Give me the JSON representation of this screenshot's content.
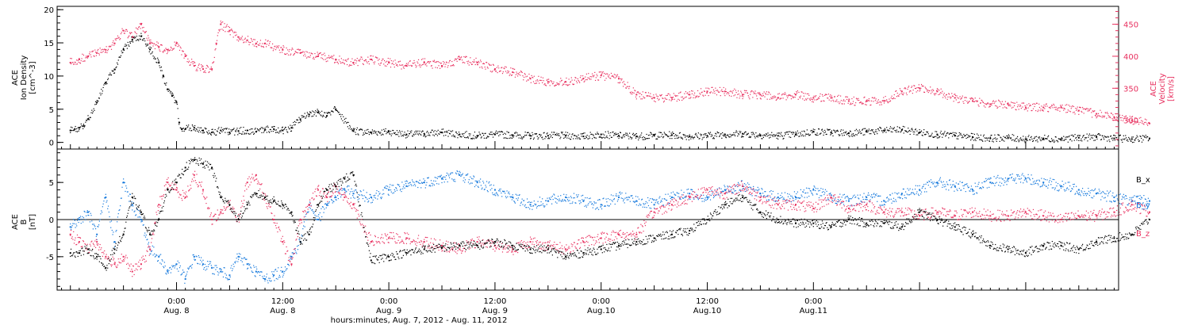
{
  "colors": {
    "black": "#000000",
    "pink": "#e8305f",
    "blue": "#1478dc"
  },
  "chart_data": [
    {
      "type": "scatter",
      "panel": "top",
      "y_left": {
        "label_lines": [
          "ACE",
          "Ion Density",
          "[cm^-3]"
        ],
        "ylim": [
          -1,
          20.5
        ],
        "ticks": [
          0,
          5,
          10,
          15,
          20
        ]
      },
      "y_right": {
        "label_lines": [
          "ACE",
          "Velocity",
          "[km/s]"
        ],
        "ylim": [
          255,
          478
        ],
        "ticks": [
          300,
          350,
          400,
          450
        ]
      },
      "series": [
        {
          "axis": "left",
          "color": "#000000",
          "x_hours": [
            -12.0,
            -11.5,
            -11.0,
            -10.5,
            -10.0,
            -9.0,
            -8.0,
            -7.0,
            -6.0,
            -5.0,
            -4.0,
            -3.0,
            -2.0,
            -1.5,
            -1.0,
            -0.5,
            0.0,
            0.3,
            0.6,
            1.0,
            2.0,
            3.0,
            4.0,
            5.0,
            6.0,
            7.0,
            8.0,
            9.0,
            10.0,
            11.0,
            12.0,
            13.0,
            14.0,
            15.0,
            16.0,
            17.0,
            18.0,
            20.0,
            22.0,
            24.0,
            26.0,
            28.0,
            30.0,
            32.0,
            34.0,
            36.0,
            38.0,
            40.0,
            42.0,
            44.0,
            46.0,
            48.0,
            50.0,
            52.0,
            54.0,
            56.0,
            58.0,
            60.0,
            62.0,
            64.0,
            66.0,
            68.0,
            70.0,
            72.0,
            74.0,
            76.0,
            78.0,
            80.0,
            82.0,
            84.0,
            86.0,
            88.0,
            90.0,
            92.0,
            94.0,
            96.0,
            98.0,
            100.0,
            102.0,
            104.0,
            106.0,
            108.0,
            110.0
          ],
          "values": [
            1.8,
            2.0,
            2.2,
            2.5,
            3.5,
            6.0,
            9.0,
            11.0,
            14.0,
            15.5,
            16.0,
            14.0,
            12.0,
            10.0,
            8.0,
            7.0,
            6.0,
            3.0,
            2.0,
            2.0,
            2.2,
            1.8,
            1.5,
            1.8,
            1.5,
            1.7,
            1.8,
            1.6,
            1.9,
            2.0,
            1.8,
            2.2,
            3.5,
            4.2,
            4.5,
            4.0,
            5.0,
            1.7,
            1.5,
            1.6,
            1.2,
            1.3,
            1.5,
            1.2,
            1.0,
            1.2,
            1.1,
            1.0,
            1.0,
            1.0,
            0.9,
            1.2,
            1.0,
            0.9,
            1.0,
            1.1,
            0.9,
            1.0,
            1.2,
            1.3,
            1.1,
            1.0,
            1.2,
            1.6,
            1.5,
            1.4,
            1.6,
            1.8,
            1.9,
            1.5,
            1.2,
            1.0,
            0.8,
            0.6,
            0.7,
            0.5,
            0.6,
            0.5,
            0.7,
            0.8,
            0.6,
            0.5,
            0.6
          ]
        },
        {
          "axis": "right",
          "color": "#e8305f",
          "x_hours": [
            -12.0,
            -11.0,
            -10.0,
            -9.0,
            -8.0,
            -7.0,
            -6.0,
            -5.0,
            -4.0,
            -3.0,
            -2.0,
            -1.0,
            0.0,
            1.0,
            2.0,
            3.0,
            4.0,
            4.5,
            5.0,
            6.0,
            7.0,
            8.0,
            9.0,
            10.0,
            12.0,
            14.0,
            16.0,
            18.0,
            20.0,
            22.0,
            24.0,
            26.0,
            28.0,
            30.0,
            32.0,
            34.0,
            36.0,
            38.0,
            40.0,
            42.0,
            44.0,
            46.0,
            48.0,
            50.0,
            52.0,
            54.0,
            56.0,
            58.0,
            60.0,
            62.0,
            64.0,
            66.0,
            68.0,
            70.0,
            72.0,
            74.0,
            76.0,
            78.0,
            80.0,
            82.0,
            84.0,
            86.0,
            88.0,
            90.0,
            92.0,
            94.0,
            96.0,
            98.0,
            100.0,
            102.0,
            104.0,
            106.0,
            108.0,
            110.0
          ],
          "values": [
            390,
            395,
            400,
            405,
            410,
            420,
            440,
            430,
            450,
            420,
            415,
            410,
            420,
            400,
            385,
            380,
            380,
            420,
            450,
            440,
            430,
            425,
            420,
            420,
            410,
            405,
            400,
            395,
            390,
            395,
            390,
            385,
            390,
            385,
            395,
            390,
            380,
            375,
            365,
            360,
            360,
            365,
            370,
            365,
            340,
            335,
            335,
            340,
            345,
            345,
            340,
            340,
            335,
            340,
            335,
            335,
            330,
            330,
            330,
            345,
            350,
            345,
            335,
            330,
            325,
            325,
            320,
            320,
            320,
            315,
            310,
            305,
            300,
            295
          ]
        }
      ]
    },
    {
      "type": "scatter",
      "panel": "bottom",
      "y_left": {
        "label_lines": [
          "ACE",
          "B",
          "[nT]"
        ],
        "ylim": [
          -9.5,
          9.5
        ],
        "ticks": [
          -5,
          0,
          5
        ]
      },
      "zero_line": true,
      "legend": {
        "placement": "right",
        "entries": [
          {
            "label": "B_x",
            "color": "#000000"
          },
          {
            "label": "B_y",
            "color": "#1478dc"
          },
          {
            "label": "B_z",
            "color": "#e8305f"
          }
        ]
      },
      "series": [
        {
          "name": "B_x",
          "color": "#000000",
          "x_hours": [
            -12.0,
            -11.0,
            -10.0,
            -9.0,
            -8.0,
            -7.0,
            -6.0,
            -5.0,
            -4.0,
            -3.0,
            -2.0,
            -1.0,
            0.0,
            1.0,
            2.0,
            3.0,
            4.0,
            5.0,
            6.0,
            7.0,
            8.0,
            9.0,
            10.0,
            11.0,
            12.0,
            13.0,
            14.0,
            15.0,
            16.0,
            17.0,
            18.0,
            19.0,
            20.0,
            22.0,
            24.0,
            26.0,
            28.0,
            30.0,
            32.0,
            34.0,
            36.0,
            38.0,
            40.0,
            42.0,
            44.0,
            46.0,
            48.0,
            50.0,
            52.0,
            54.0,
            56.0,
            58.0,
            60.0,
            62.0,
            64.0,
            66.0,
            68.0,
            70.0,
            72.0,
            74.0,
            76.0,
            78.0,
            80.0,
            82.0,
            84.0,
            86.0,
            88.0,
            90.0,
            92.0,
            94.0,
            96.0,
            98.0,
            100.0,
            102.0,
            104.0,
            106.0,
            108.0,
            110.0
          ],
          "values": [
            -4.5,
            -4.5,
            -4.0,
            -5.0,
            -6.5,
            -4.0,
            -2.0,
            3.0,
            1.0,
            -2.0,
            0.0,
            4.0,
            5.0,
            7.0,
            8.0,
            7.5,
            7.0,
            3.0,
            2.0,
            0.0,
            2.0,
            3.5,
            3.0,
            2.5,
            2.0,
            1.0,
            -3.0,
            -2.0,
            2.0,
            4.0,
            4.5,
            5.5,
            6.0,
            -5.5,
            -5.0,
            -4.5,
            -4.0,
            -3.8,
            -3.5,
            -3.5,
            -3.0,
            -3.5,
            -4.0,
            -4.0,
            -5.0,
            -4.5,
            -4.0,
            -3.5,
            -3.0,
            -2.5,
            -2.0,
            -1.5,
            0.0,
            2.0,
            3.0,
            1.0,
            0.0,
            -0.5,
            -0.5,
            -1.0,
            0.0,
            -0.5,
            -0.5,
            -1.0,
            1.0,
            0.0,
            -1.0,
            -2.0,
            -3.5,
            -4.0,
            -4.5,
            -3.5,
            -3.5,
            -4.0,
            -3.0,
            -2.5,
            -2.0,
            0.0
          ]
        },
        {
          "name": "B_y",
          "color": "#1478dc",
          "x_hours": [
            -12.0,
            -11.0,
            -10.0,
            -9.0,
            -8.0,
            -7.0,
            -6.0,
            -5.0,
            -4.0,
            -3.0,
            -2.0,
            -1.0,
            0.0,
            1.0,
            2.0,
            3.0,
            4.0,
            5.0,
            6.0,
            7.0,
            8.0,
            9.0,
            10.0,
            11.0,
            12.0,
            13.0,
            14.0,
            15.0,
            16.0,
            17.0,
            18.0,
            19.0,
            20.0,
            22.0,
            24.0,
            26.0,
            28.0,
            30.0,
            32.0,
            34.0,
            36.0,
            38.0,
            40.0,
            42.0,
            44.0,
            46.0,
            48.0,
            50.0,
            52.0,
            54.0,
            56.0,
            58.0,
            60.0,
            62.0,
            64.0,
            66.0,
            68.0,
            70.0,
            72.0,
            74.0,
            76.0,
            78.0,
            80.0,
            82.0,
            84.0,
            86.0,
            88.0,
            90.0,
            92.0,
            94.0,
            96.0,
            98.0,
            100.0,
            102.0,
            104.0,
            106.0,
            108.0,
            110.0
          ],
          "values": [
            -1.0,
            0.0,
            1.0,
            -2.0,
            3.0,
            -3.0,
            5.0,
            2.0,
            0.0,
            -4.0,
            -5.0,
            -7.0,
            -6.0,
            -8.0,
            -5.0,
            -6.0,
            -6.5,
            -7.0,
            -7.5,
            -5.0,
            -6.0,
            -7.0,
            -8.0,
            -7.5,
            -7.0,
            -5.0,
            -3.0,
            2.0,
            0.0,
            2.0,
            3.0,
            4.0,
            3.5,
            3.0,
            4.0,
            4.5,
            5.0,
            5.5,
            6.0,
            5.0,
            4.0,
            3.0,
            2.0,
            2.5,
            3.0,
            2.5,
            2.0,
            3.0,
            2.5,
            2.0,
            3.0,
            3.5,
            3.0,
            4.0,
            4.5,
            3.5,
            3.0,
            3.0,
            4.0,
            3.0,
            2.5,
            3.0,
            2.5,
            3.5,
            4.0,
            5.0,
            4.5,
            4.0,
            5.0,
            5.5,
            5.5,
            5.0,
            4.5,
            4.0,
            3.5,
            3.0,
            2.5,
            2.5
          ]
        },
        {
          "name": "B_z",
          "color": "#e8305f",
          "x_hours": [
            -12.0,
            -11.0,
            -10.0,
            -9.0,
            -8.0,
            -7.0,
            -6.0,
            -5.0,
            -4.0,
            -3.0,
            -2.0,
            -1.0,
            0.0,
            1.0,
            2.0,
            3.0,
            4.0,
            5.0,
            6.0,
            7.0,
            8.0,
            9.0,
            10.0,
            11.0,
            12.0,
            13.0,
            14.0,
            15.0,
            16.0,
            17.0,
            18.0,
            19.0,
            20.0,
            22.0,
            24.0,
            26.0,
            28.0,
            30.0,
            32.0,
            34.0,
            36.0,
            38.0,
            40.0,
            42.0,
            44.0,
            46.0,
            48.0,
            50.0,
            52.0,
            54.0,
            56.0,
            58.0,
            60.0,
            62.0,
            64.0,
            66.0,
            68.0,
            70.0,
            72.0,
            74.0,
            76.0,
            78.0,
            80.0,
            82.0,
            84.0,
            86.0,
            88.0,
            90.0,
            92.0,
            94.0,
            96.0,
            98.0,
            100.0,
            102.0,
            104.0,
            106.0,
            108.0,
            110.0
          ],
          "values": [
            -2.0,
            -3.0,
            -4.0,
            -3.0,
            -5.0,
            -6.0,
            -5.0,
            -7.0,
            -6.0,
            -4.0,
            2.0,
            5.0,
            4.0,
            3.0,
            6.0,
            4.0,
            0.0,
            1.0,
            2.0,
            0.0,
            5.0,
            6.0,
            3.0,
            0.0,
            -3.0,
            -6.0,
            0.0,
            2.0,
            4.0,
            3.0,
            4.5,
            3.0,
            2.0,
            -3.0,
            -2.5,
            -2.5,
            -3.0,
            -3.5,
            -4.0,
            -3.0,
            -3.5,
            -4.0,
            -3.0,
            -3.5,
            -4.0,
            -3.0,
            -2.5,
            -2.0,
            -2.0,
            1.0,
            2.0,
            3.0,
            4.0,
            3.5,
            4.5,
            3.0,
            2.0,
            2.0,
            1.5,
            3.0,
            1.5,
            2.0,
            1.0,
            1.0,
            0.5,
            1.0,
            0.5,
            1.0,
            0.5,
            0.5,
            1.0,
            0.5,
            0.0,
            0.5,
            0.5,
            1.0,
            2.0,
            1.0
          ]
        }
      ]
    }
  ],
  "x_axis": {
    "xlim_hours": [
      -13.5,
      106.5
    ],
    "major_tick_hours": [
      0,
      12,
      24,
      36,
      48,
      60,
      72,
      84,
      96
    ],
    "minor_tick_step_hours": 1,
    "tick_labels": [
      {
        "hours": 0,
        "time": "0:00",
        "date": "Aug. 8"
      },
      {
        "hours": 12,
        "time": "12:00",
        "date": "Aug. 8"
      },
      {
        "hours": 24,
        "time": "0:00",
        "date": "Aug. 9"
      },
      {
        "hours": 36,
        "time": "12:00",
        "date": "Aug. 9"
      },
      {
        "hours": 48,
        "time": "0:00",
        "date": "Aug.10"
      },
      {
        "hours": 60,
        "time": "12:00",
        "date": "Aug.10"
      },
      {
        "hours": 72,
        "time": "0:00",
        "date": "Aug.11"
      }
    ],
    "xlabel": "hours:minutes, Aug.  7, 2012 - Aug. 11, 2012"
  }
}
